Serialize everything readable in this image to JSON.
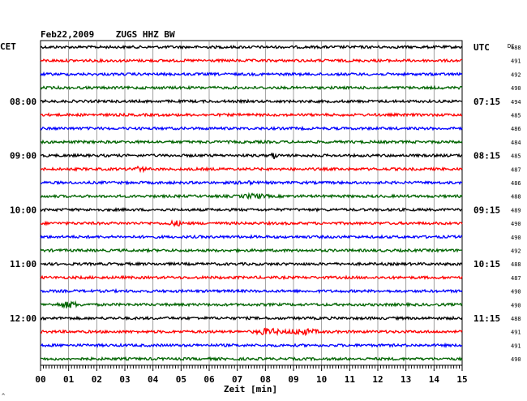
{
  "header": {
    "title": "Feb22,2009    ZUGS HHZ BW",
    "left_label": "CET",
    "right_label": "UTC",
    "dc_label": "DC"
  },
  "chart_data": {
    "type": "line",
    "description_units": "helicorder traces, one per 15 minutes",
    "xlabel": "Zeit [min]",
    "xlim": [
      0,
      15
    ],
    "x_ticks": [
      "00",
      "01",
      "02",
      "03",
      "04",
      "05",
      "06",
      "07",
      "08",
      "09",
      "10",
      "11",
      "12",
      "13",
      "14",
      "15"
    ],
    "trace_colors": [
      "#000000",
      "#ff0000",
      "#0000ff",
      "#006400"
    ],
    "left_time_labels": [
      {
        "row": 4,
        "text": "08:00"
      },
      {
        "row": 8,
        "text": "09:00"
      },
      {
        "row": 12,
        "text": "10:00"
      },
      {
        "row": 16,
        "text": "11:00"
      },
      {
        "row": 20,
        "text": "12:00"
      }
    ],
    "right_time_labels": [
      {
        "row": 0,
        "text": "UTC"
      },
      {
        "row": 4,
        "text": "07:15"
      },
      {
        "row": 8,
        "text": "08:15"
      },
      {
        "row": 12,
        "text": "09:15"
      },
      {
        "row": 16,
        "text": "10:15"
      },
      {
        "row": 20,
        "text": "11:15"
      }
    ],
    "dc_values": [
      488,
      491,
      492,
      490,
      494,
      485,
      486,
      484,
      485,
      487,
      486,
      488,
      489,
      490,
      490,
      492,
      488,
      487,
      490,
      490,
      488,
      491,
      491,
      490
    ],
    "events": [
      {
        "row": 8,
        "minute": 8.3,
        "amplitude": 3.5,
        "width": 0.15
      },
      {
        "row": 9,
        "minute": 3.5,
        "amplitude": 2.0,
        "width": 0.4
      },
      {
        "row": 10,
        "minute": 7.3,
        "amplitude": 1.2,
        "width": 0.5
      },
      {
        "row": 11,
        "minute": 7.6,
        "amplitude": 2.2,
        "width": 0.6
      },
      {
        "row": 13,
        "minute": 4.8,
        "amplitude": 2.5,
        "width": 0.35
      },
      {
        "row": 19,
        "minute": 1.0,
        "amplitude": 3.5,
        "width": 0.5
      },
      {
        "row": 21,
        "minute": 8.1,
        "amplitude": 3.5,
        "width": 0.6
      },
      {
        "row": 21,
        "minute": 9.3,
        "amplitude": 3.0,
        "width": 0.8
      }
    ],
    "footer_mark": "^"
  }
}
